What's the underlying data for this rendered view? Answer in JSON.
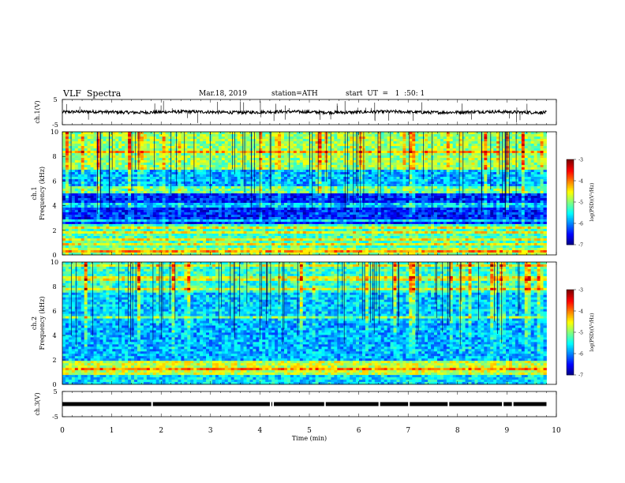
{
  "header": {
    "title": "VLF  Spectra",
    "date": "Mar.18, 2019",
    "station": "station=ATH",
    "start": "start  UT  =   1  :50: 1"
  },
  "chart_data": [
    {
      "type": "line",
      "panel": "ch1-waveform",
      "ylabel": "ch.1(V)",
      "ylim": [
        -5,
        5
      ],
      "yticks": [
        "5",
        "-5"
      ],
      "xlim": [
        0,
        10
      ],
      "level": 0,
      "noise_amplitude": 0.6
    },
    {
      "type": "heatmap",
      "panel": "ch1-spectrogram",
      "ylabel": "ch.1\nFrequency  (kHz)",
      "ylabel_line1": "ch.1",
      "ylabel_line2": "Frequency  (kHz)",
      "ylim": [
        0,
        10
      ],
      "yticks": [
        "0",
        "2",
        "4",
        "6",
        "8",
        "10"
      ],
      "xlim": [
        0,
        9.8
      ],
      "colorbar": {
        "label": "log(PSD)(V²/Hz)",
        "range": [
          -7,
          -3
        ],
        "ticks": [
          "-3",
          "-4",
          "-5",
          "-6",
          "-7"
        ]
      },
      "description_bands_khz": [
        {
          "from": 0,
          "to": 0.5,
          "level": -4.8
        },
        {
          "from": 0.5,
          "to": 2.5,
          "level": -5.2
        },
        {
          "from": 2.5,
          "to": 5.0,
          "level": -6.4
        },
        {
          "from": 5.0,
          "to": 7.0,
          "level": -5.8
        },
        {
          "from": 7.0,
          "to": 10.0,
          "level": -4.9
        }
      ]
    },
    {
      "type": "heatmap",
      "panel": "ch2-spectrogram",
      "ylabel_line1": "ch.2",
      "ylabel_line2": "Frequency  (kHz)",
      "ylim": [
        0,
        10
      ],
      "yticks": [
        "0",
        "2",
        "4",
        "6",
        "8",
        "10"
      ],
      "xlim": [
        0,
        9.8
      ],
      "colorbar": {
        "label": "log(PSD)(V²/Hz)",
        "range": [
          -7,
          -3
        ],
        "ticks": [
          "-3",
          "-4",
          "-5",
          "-6",
          "-7"
        ]
      },
      "description_bands_khz": [
        {
          "from": 0,
          "to": 0.8,
          "level": -5.6
        },
        {
          "from": 0.8,
          "to": 2.0,
          "level": -4.7
        },
        {
          "from": 2.0,
          "to": 5.0,
          "level": -5.8
        },
        {
          "from": 5.0,
          "to": 7.5,
          "level": -5.7
        },
        {
          "from": 7.5,
          "to": 10.0,
          "level": -5.3
        }
      ]
    },
    {
      "type": "line",
      "panel": "ch3-waveform",
      "ylabel": "ch.3(V)",
      "ylim": [
        -5,
        5
      ],
      "yticks": [
        "5",
        "-5"
      ],
      "xlim": [
        0,
        10
      ],
      "level": 0,
      "noise_amplitude": 0.0
    }
  ],
  "xaxis": {
    "label": "Time  (min)",
    "range": [
      0,
      10
    ],
    "ticks": [
      "0",
      "1",
      "2",
      "3",
      "4",
      "5",
      "6",
      "7",
      "8",
      "9",
      "10"
    ]
  }
}
